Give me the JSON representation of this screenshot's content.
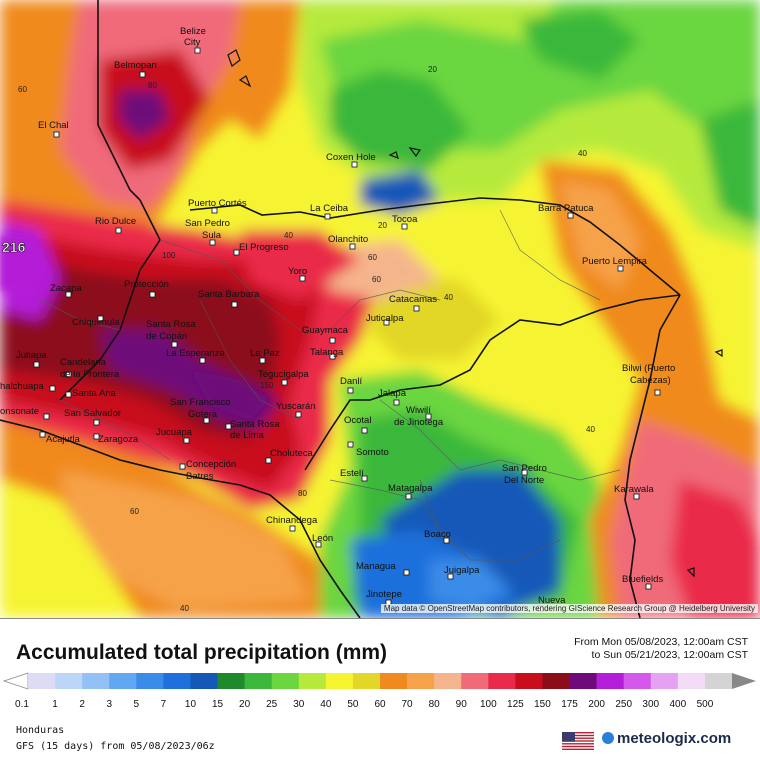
{
  "title": "Accumulated total precipitation (mm)",
  "period": {
    "from": "From Mon 05/08/2023, 12:00am CST",
    "to": "to Sun 05/21/2023, 12:00am CST"
  },
  "region": "Honduras",
  "model": "GFS (15 days) from 05/08/2023/06z",
  "brand": "meteologix.com",
  "attribution": "Map data © OpenStreetMap contributors, rendering GIScience Research Group @ Heidelberg University",
  "map_max_value": "216",
  "scale": [
    {
      "label": "0.1",
      "color": "#dcdcf5"
    },
    {
      "label": "1",
      "color": "#bcd6f8"
    },
    {
      "label": "2",
      "color": "#93c0f5"
    },
    {
      "label": "3",
      "color": "#61a8f2"
    },
    {
      "label": "5",
      "color": "#3a8ce8"
    },
    {
      "label": "7",
      "color": "#1f6fdc"
    },
    {
      "label": "10",
      "color": "#1558b8"
    },
    {
      "label": "15",
      "color": "#1f8a2c"
    },
    {
      "label": "20",
      "color": "#3bb83a"
    },
    {
      "label": "25",
      "color": "#6bd640"
    },
    {
      "label": "30",
      "color": "#b5ea3c"
    },
    {
      "label": "40",
      "color": "#f6f430"
    },
    {
      "label": "50",
      "color": "#e2d628"
    },
    {
      "label": "60",
      "color": "#f08a1e"
    },
    {
      "label": "70",
      "color": "#f6a24a"
    },
    {
      "label": "80",
      "color": "#f5b58c"
    },
    {
      "label": "90",
      "color": "#f06b7a"
    },
    {
      "label": "100",
      "color": "#ea2a4a"
    },
    {
      "label": "125",
      "color": "#c80e1a"
    },
    {
      "label": "150",
      "color": "#8c0c1a"
    },
    {
      "label": "175",
      "color": "#6e0a7a"
    },
    {
      "label": "200",
      "color": "#b41ed8"
    },
    {
      "label": "250",
      "color": "#d458ec"
    },
    {
      "label": "300",
      "color": "#e6a2f2"
    },
    {
      "label": "400",
      "color": "#f4dcf8"
    },
    {
      "label": "500",
      "color": "#d4d4d4"
    }
  ],
  "contour_labels": [
    "20",
    "20",
    "40",
    "40",
    "40",
    "40",
    "40",
    "60",
    "60",
    "60",
    "60",
    "80",
    "80",
    "100",
    "150"
  ],
  "cities": [
    {
      "name": "Belize",
      "name2": "City"
    },
    {
      "name": "Belmopan"
    },
    {
      "name": "El Chal"
    },
    {
      "name": "Coxen Hole"
    },
    {
      "name": "Puerto Cortés"
    },
    {
      "name": "La Ceiba"
    },
    {
      "name": "Rio Dulce"
    },
    {
      "name": "San Pedro",
      "name2": "Sula"
    },
    {
      "name": "Tocoa"
    },
    {
      "name": "Barra Patuca"
    },
    {
      "name": "El Progreso"
    },
    {
      "name": "Olanchito"
    },
    {
      "name": "Puerto Lempira"
    },
    {
      "name": "Yoro"
    },
    {
      "name": "Zacapa"
    },
    {
      "name": "Protección"
    },
    {
      "name": "Santa Barbara"
    },
    {
      "name": "Catacamas"
    },
    {
      "name": "Juticalpa"
    },
    {
      "name": "Chiquimula"
    },
    {
      "name": "Santa Rosa",
      "name2": "de Copán"
    },
    {
      "name": "Guaymaca"
    },
    {
      "name": "Talanga"
    },
    {
      "name": "Jutiapa"
    },
    {
      "name": "La Esperanza"
    },
    {
      "name": "La Paz"
    },
    {
      "name": "Candelaria",
      "name2": "de la Frontera"
    },
    {
      "name": "Bilwi (Puerto",
      "name2": "Cabezas)"
    },
    {
      "name": "Tegucigalpa"
    },
    {
      "name": "halchuapa"
    },
    {
      "name": "Santa Ana"
    },
    {
      "name": "Danlí"
    },
    {
      "name": "Jalapa"
    },
    {
      "name": "San Francisco",
      "name2": "Gotera"
    },
    {
      "name": "Yuscarán"
    },
    {
      "name": "onsonate"
    },
    {
      "name": "San Salvador"
    },
    {
      "name": "Wiwilí",
      "name2": "de Jinotega"
    },
    {
      "name": "Ocotal"
    },
    {
      "name": "Acajutla"
    },
    {
      "name": "Zaragoza"
    },
    {
      "name": "Jucuapa"
    },
    {
      "name": "Santa Rosa",
      "name2": "de Lima"
    },
    {
      "name": "Somoto"
    },
    {
      "name": "Concepción",
      "name2": "Batres"
    },
    {
      "name": "Choluteca"
    },
    {
      "name": "Estelí"
    },
    {
      "name": "San Pedro",
      "name2": "Del Norte"
    },
    {
      "name": "Matagalpa"
    },
    {
      "name": "Karawala"
    },
    {
      "name": "Chinandega"
    },
    {
      "name": "Boaco"
    },
    {
      "name": "León"
    },
    {
      "name": "Managua"
    },
    {
      "name": "Juigalpa"
    },
    {
      "name": "Bluefields"
    },
    {
      "name": "Jinotepe"
    },
    {
      "name": "Nueva"
    }
  ]
}
